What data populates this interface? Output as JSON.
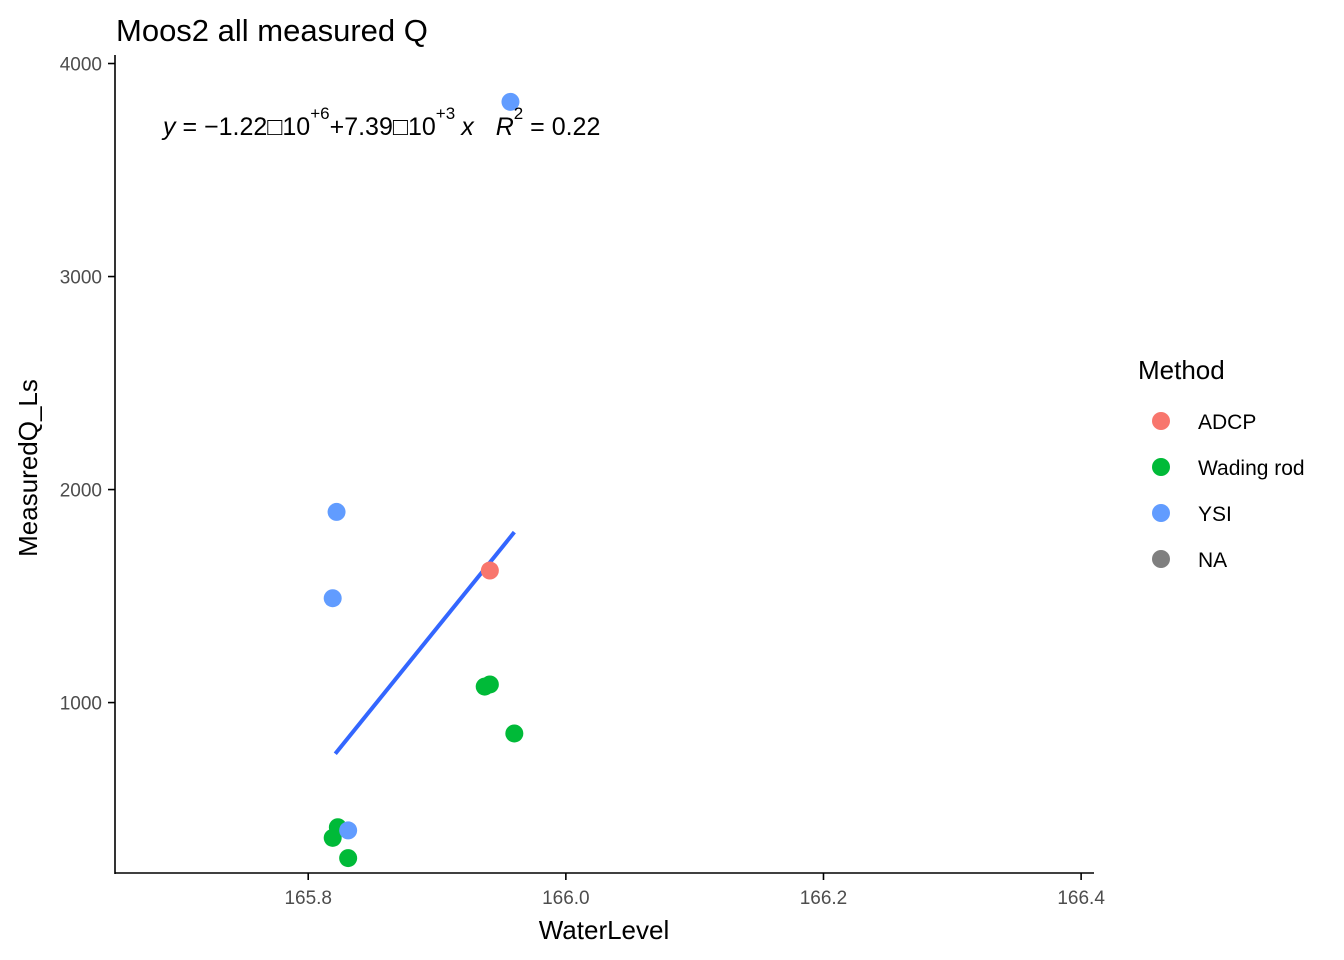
{
  "chart_data": {
    "type": "scatter",
    "title": "Moos2 all measured Q",
    "xlabel": "WaterLevel",
    "ylabel": "MeasuredQ_Ls",
    "xlim": [
      165.65,
      166.41
    ],
    "ylim": [
      200,
      4040
    ],
    "x_ticks": [
      165.8,
      166.0,
      166.2,
      166.4
    ],
    "x_tick_labels": [
      "165.8",
      "166.0",
      "166.2",
      "166.4"
    ],
    "y_ticks": [
      1000,
      2000,
      3000,
      4000
    ],
    "y_tick_labels": [
      "1000",
      "2000",
      "3000",
      "4000"
    ],
    "grid": false,
    "legend": {
      "title": "Method",
      "placement": "right",
      "entries": [
        {
          "label": "ADCP",
          "color": "#F8766D"
        },
        {
          "label": "Wading rod",
          "color": "#00BA38"
        },
        {
          "label": "YSI",
          "color": "#619CFF"
        },
        {
          "label": "NA",
          "color": "#7F7F7F"
        }
      ]
    },
    "series": [
      {
        "name": "ADCP",
        "color": "#F8766D",
        "points": [
          [
            165.941,
            1620
          ]
        ]
      },
      {
        "name": "Wading rod",
        "color": "#00BA38",
        "points": [
          [
            165.937,
            1075
          ],
          [
            165.941,
            1085
          ],
          [
            165.96,
            855
          ],
          [
            165.823,
            415
          ],
          [
            165.819,
            365
          ],
          [
            165.831,
            270
          ]
        ]
      },
      {
        "name": "YSI",
        "color": "#619CFF",
        "points": [
          [
            165.957,
            3820
          ],
          [
            165.822,
            1895
          ],
          [
            165.819,
            1490
          ],
          [
            165.831,
            400
          ]
        ]
      }
    ],
    "fit_line": {
      "color": "#3366FF",
      "points": [
        [
          165.821,
          760
        ],
        [
          165.96,
          1800
        ]
      ]
    },
    "annotation": {
      "y_var": "y",
      "equals": " = ",
      "minus": "−",
      "coef1": "1.22",
      "cross": "□",
      "ten": "10",
      "exp1": "+6",
      "plus": "+",
      "coef2": "7.39",
      "exp2": "+3",
      "x_var": "x",
      "r_var": "R",
      "r_exp": "2",
      "r_value": " = 0.22"
    }
  }
}
